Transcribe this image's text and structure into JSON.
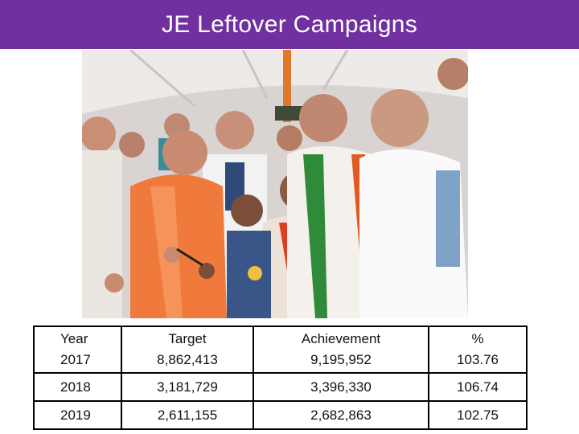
{
  "slide": {
    "title": "JE Leftover Campaigns",
    "accent_color": "#7030a0"
  },
  "photo": {
    "icon": "vaccination-photo"
  },
  "table": {
    "headers": [
      "Year",
      "Target",
      "Achievement",
      "%"
    ],
    "rows": [
      [
        "2017",
        "8,862,413",
        "9,195,952",
        "103.76"
      ],
      [
        "2018",
        "3,181,729",
        "3,396,330",
        "106.74"
      ],
      [
        "2019",
        "2,611,155",
        "2,682,863",
        "102.75"
      ]
    ]
  }
}
